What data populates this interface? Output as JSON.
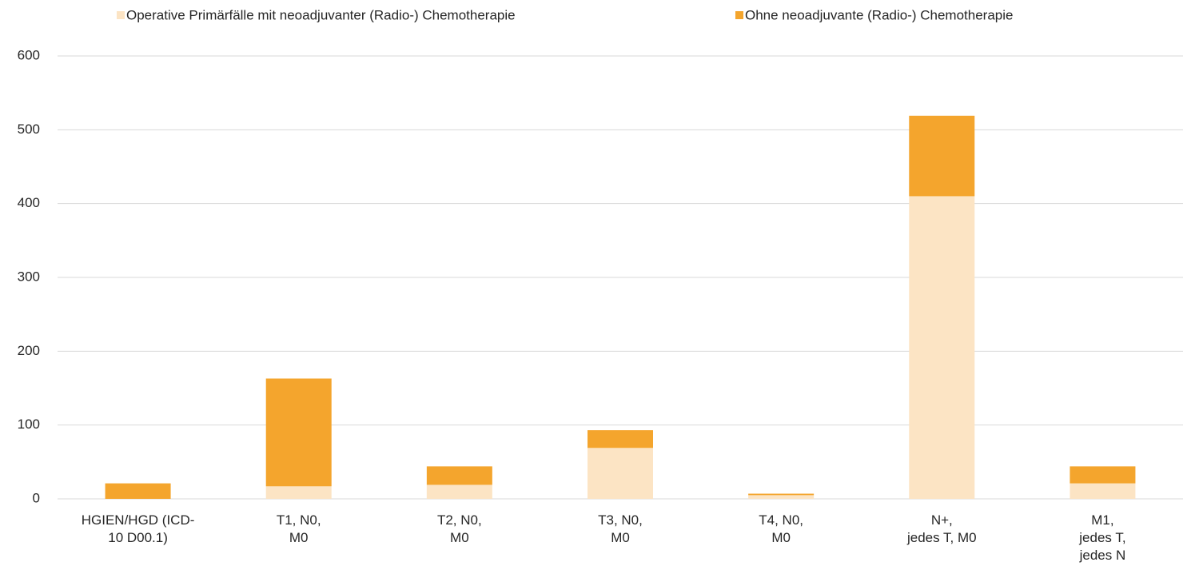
{
  "chart_data": {
    "type": "stacked_bar",
    "categories": [
      "HGIEN/HGD (ICD-\n10 D00.1)",
      "T1, N0,\nM0",
      "T2, N0,\nM0",
      "T3, N0,\nM0",
      "T4, N0,\nM0",
      "N+,\njedes T, M0",
      "M1,\njedes T,\njedes N"
    ],
    "series": [
      {
        "name": "Operative Primärfälle mit neoadjuvanter (Radio-) Chemotherapie",
        "color": "#fce4c4",
        "values": [
          0,
          17,
          19,
          69,
          5,
          410,
          21
        ]
      },
      {
        "name": "Ohne neoadjuvante (Radio-) Chemotherapie",
        "color": "#f4a52d",
        "values": [
          21,
          146,
          25,
          24,
          2,
          109,
          23
        ]
      }
    ],
    "ylim": [
      0,
      600
    ],
    "yticks": [
      0,
      100,
      200,
      300,
      400,
      500,
      600
    ],
    "grid": true,
    "legend": "top"
  }
}
